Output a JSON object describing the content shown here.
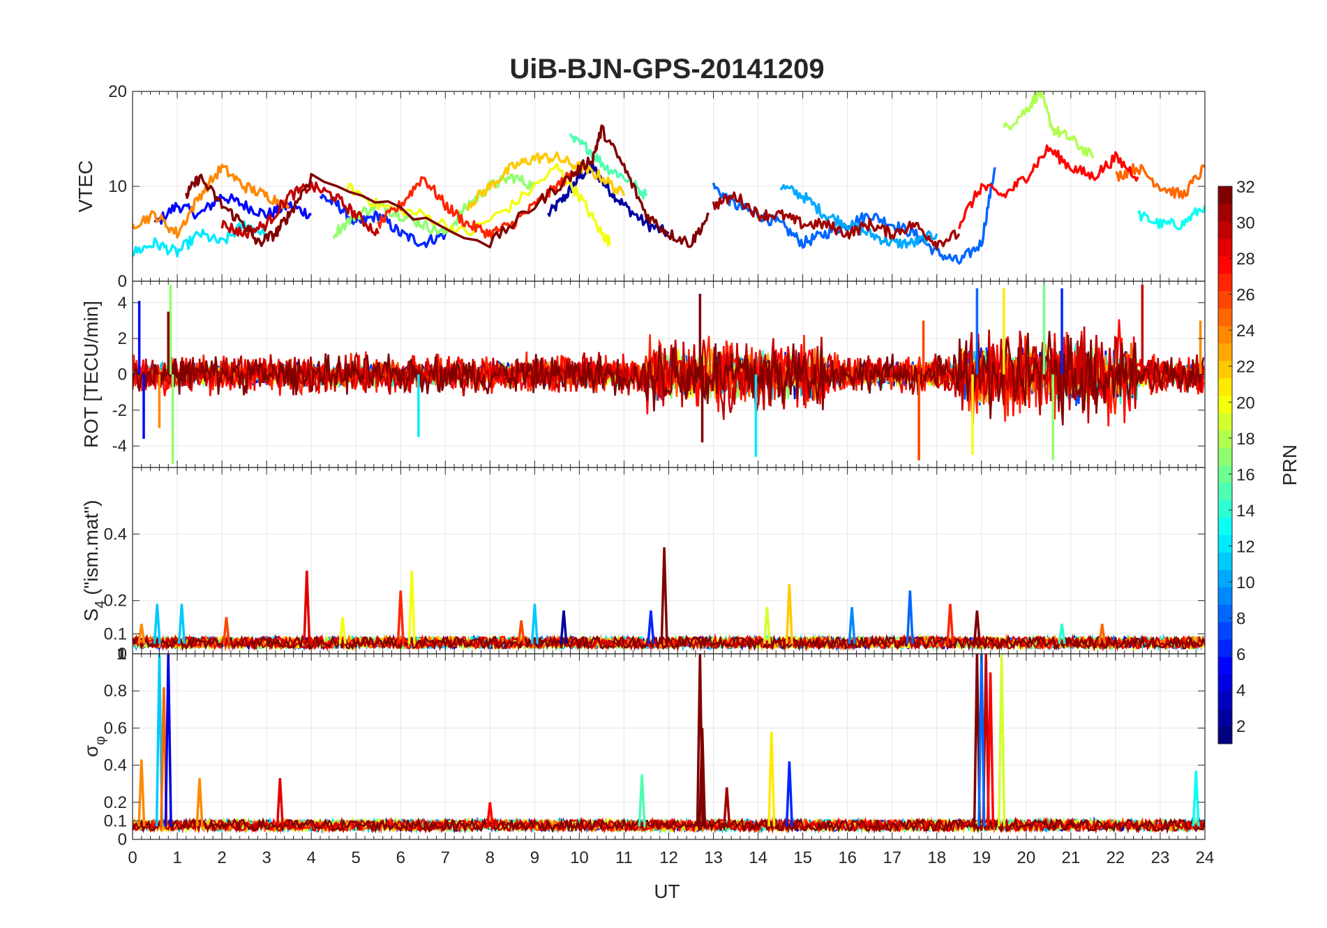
{
  "chart_data": {
    "type": "line",
    "title": "UiB-BJN-GPS-20141209",
    "xlabel": "UT",
    "xlim": [
      0,
      24
    ],
    "xticks": [
      "0",
      "1",
      "2",
      "3",
      "4",
      "5",
      "6",
      "7",
      "8",
      "9",
      "10",
      "11",
      "12",
      "13",
      "14",
      "15",
      "16",
      "17",
      "18",
      "19",
      "20",
      "21",
      "22",
      "23",
      "24"
    ],
    "colorbar": {
      "label": "PRN",
      "range": [
        1,
        32
      ],
      "colormap": "jet",
      "ticks": [
        "2",
        "4",
        "6",
        "8",
        "10",
        "12",
        "14",
        "16",
        "18",
        "20",
        "22",
        "24",
        "26",
        "28",
        "30",
        "32"
      ]
    },
    "panels": [
      {
        "id": "vtec",
        "ylabel": "VTEC",
        "ylim": [
          0,
          20
        ],
        "yticks": [
          0,
          10,
          20
        ],
        "ytick_labels": [
          "0",
          "10",
          "20"
        ],
        "series": [
          {
            "prn": 2,
            "x": [
              9.3,
              9.7,
              10.0,
              10.3,
              10.6,
              11.0,
              11.5,
              12.0
            ],
            "y": [
              7,
              9,
              11,
              12,
              10,
              8,
              6,
              5
            ]
          },
          {
            "prn": 5,
            "x": [
              0.5,
              1.0,
              1.5,
              2.0,
              2.5,
              3.0,
              3.5,
              4.0
            ],
            "y": [
              6,
              8,
              7,
              9,
              8,
              7,
              8,
              7
            ]
          },
          {
            "prn": 6,
            "x": [
              4.2,
              4.6,
              5.0,
              5.5,
              6.0,
              6.5,
              7.0
            ],
            "y": [
              9,
              8,
              6,
              7,
              5,
              4,
              5
            ]
          },
          {
            "prn": 8,
            "x": [
              13.0,
              13.5,
              14.0,
              14.5,
              15.0,
              15.5,
              16.0,
              16.5,
              17.0,
              17.5,
              18.0,
              18.5,
              19.0,
              19.3
            ],
            "y": [
              10,
              8,
              7,
              6,
              4,
              5,
              6,
              7,
              6,
              5,
              3,
              2,
              4,
              12
            ]
          },
          {
            "prn": 10,
            "x": [
              14.5,
              15.0,
              15.5,
              16.0,
              16.5,
              17.0,
              17.5,
              18.0
            ],
            "y": [
              10,
              9,
              7,
              6,
              5,
              4,
              4,
              5
            ]
          },
          {
            "prn": 12,
            "x": [
              0.0,
              0.5,
              1.0,
              1.5,
              2.0,
              2.5,
              3.0
            ],
            "y": [
              3,
              4,
              3,
              5,
              4,
              6,
              5
            ]
          },
          {
            "prn": 13,
            "x": [
              22.5,
              23.0,
              23.5,
              24.0
            ],
            "y": [
              7,
              6,
              6,
              8
            ]
          },
          {
            "prn": 15,
            "x": [
              9.8,
              10.2,
              10.6,
              11.0,
              11.5
            ],
            "y": [
              15,
              14,
              12,
              11,
              9
            ]
          },
          {
            "prn": 17,
            "x": [
              4.5,
              5.0,
              5.5,
              6.0,
              6.5,
              7.0,
              7.5,
              8.0,
              8.5,
              9.0
            ],
            "y": [
              5,
              7,
              8,
              7,
              6,
              5,
              8,
              10,
              11,
              10
            ]
          },
          {
            "prn": 18,
            "x": [
              19.5,
              20.0,
              20.3,
              20.6,
              21.0,
              21.5
            ],
            "y": [
              16,
              18,
              20,
              16,
              15,
              13
            ]
          },
          {
            "prn": 20,
            "x": [
              4.8,
              5.5,
              6.5,
              7.5,
              8.5,
              9.5,
              10.0,
              10.5,
              10.7
            ],
            "y": [
              10,
              8,
              7,
              5,
              8,
              12,
              9,
              5,
              4
            ]
          },
          {
            "prn": 22,
            "x": [
              7.5,
              8.0,
              8.5,
              9.0,
              9.5,
              10.0,
              10.5,
              11.0
            ],
            "y": [
              8,
              10,
              12,
              13,
              13,
              12,
              11,
              9
            ]
          },
          {
            "prn": 24,
            "x": [
              0.0,
              0.5,
              1.0,
              1.5,
              2.0,
              2.5,
              3.0,
              3.5
            ],
            "y": [
              6,
              7,
              5,
              9,
              12,
              10,
              9,
              8
            ]
          },
          {
            "prn": 25,
            "x": [
              22.0,
              22.5,
              23.0,
              23.5,
              24.0
            ],
            "y": [
              11,
              12,
              10,
              9,
              12
            ]
          },
          {
            "prn": 27,
            "x": [
              5.5,
              6.0,
              6.5,
              7.0,
              7.5,
              8.0,
              8.5,
              9.0,
              9.5,
              10.0
            ],
            "y": [
              6,
              8,
              11,
              8,
              6,
              5,
              6,
              8,
              10,
              12
            ]
          },
          {
            "prn": 28,
            "x": [
              18.5,
              19.0,
              19.5,
              20.0,
              20.5,
              21.0,
              21.5,
              22.0,
              22.5
            ],
            "y": [
              6,
              10,
              9,
              11,
              14,
              12,
              11,
              13,
              11
            ]
          },
          {
            "prn": 30,
            "x": [
              2.0,
              2.5,
              3.0,
              3.5,
              4.0,
              4.5,
              5.0,
              5.5
            ],
            "y": [
              6,
              5,
              6,
              9,
              10,
              9,
              7,
              5
            ]
          },
          {
            "prn": 31,
            "x": [
              13.0,
              13.5,
              14.0,
              14.5,
              15.0,
              15.5,
              16.0,
              16.5,
              17.0,
              17.5,
              18.0,
              18.5
            ],
            "y": [
              8,
              9,
              7,
              7,
              6,
              6,
              5,
              6,
              5,
              6,
              4,
              5
            ]
          },
          {
            "prn": 32,
            "x": [
              1.2,
              1.5,
              2.0,
              2.5,
              2.8,
              3.2,
              3.5,
              4.0,
              8.0,
              9.0,
              9.8,
              10.3,
              10.5,
              11.0,
              11.5,
              12.0,
              12.5,
              12.9
            ],
            "y": [
              9,
              11,
              8,
              6,
              4,
              5,
              7,
              11,
              4,
              8,
              11,
              13,
              16,
              12,
              7,
              5,
              4,
              7
            ]
          }
        ]
      },
      {
        "id": "rot",
        "ylabel": "ROT [TECU/min]",
        "ylim": [
          -5.2,
          5.2
        ],
        "yticks": [
          -4,
          -2,
          0,
          2,
          4
        ],
        "ytick_labels": [
          "-4",
          "-2",
          "0",
          "2",
          "4"
        ],
        "spikes": [
          {
            "prn": 5,
            "x": 0.15,
            "y": 4.1
          },
          {
            "prn": 5,
            "x": 0.25,
            "y": -3.6
          },
          {
            "prn": 17,
            "x": 0.85,
            "y": 5.0
          },
          {
            "prn": 17,
            "x": 0.9,
            "y": -5.0
          },
          {
            "prn": 32,
            "x": 0.8,
            "y": 3.5
          },
          {
            "prn": 24,
            "x": 0.6,
            "y": -3.0
          },
          {
            "prn": 12,
            "x": 6.4,
            "y": -3.5
          },
          {
            "prn": 32,
            "x": 12.7,
            "y": 4.5
          },
          {
            "prn": 32,
            "x": 12.75,
            "y": -3.8
          },
          {
            "prn": 12,
            "x": 13.95,
            "y": -4.6
          },
          {
            "prn": 26,
            "x": 17.6,
            "y": -4.8
          },
          {
            "prn": 26,
            "x": 17.7,
            "y": 3.0
          },
          {
            "prn": 20,
            "x": 18.8,
            "y": -4.5
          },
          {
            "prn": 8,
            "x": 18.9,
            "y": 4.8
          },
          {
            "prn": 21,
            "x": 19.5,
            "y": 4.8
          },
          {
            "prn": 16,
            "x": 20.4,
            "y": 5.0
          },
          {
            "prn": 17,
            "x": 20.6,
            "y": -4.8
          },
          {
            "prn": 30,
            "x": 22.6,
            "y": 5.0
          },
          {
            "prn": 6,
            "x": 20.8,
            "y": 4.8
          },
          {
            "prn": 24,
            "x": 23.9,
            "y": 3.0
          }
        ],
        "noise_band": [
          {
            "x0": 0,
            "x1": 11.5,
            "amplitude": 1.0
          },
          {
            "x0": 11.5,
            "x1": 15.5,
            "amplitude": 2.0
          },
          {
            "x0": 15.5,
            "x1": 18.5,
            "amplitude": 1.0
          },
          {
            "x0": 18.5,
            "x1": 22.5,
            "amplitude": 2.4
          },
          {
            "x0": 22.5,
            "x1": 24,
            "amplitude": 1.0
          }
        ]
      },
      {
        "id": "s4",
        "ylabel": "S",
        "ylabel_sub": "4",
        "ylabel_suffix": " (\"ism.mat\")",
        "ylim": [
          0.04,
          0.6
        ],
        "yticks": [
          0.1,
          0.2,
          0.4
        ],
        "ytick_labels": [
          "0.1",
          "0.2",
          "0.4"
        ],
        "baseline": 0.07,
        "spikes": [
          {
            "prn": 24,
            "x": 0.2,
            "y": 0.13
          },
          {
            "prn": 11,
            "x": 0.55,
            "y": 0.19
          },
          {
            "prn": 11,
            "x": 1.1,
            "y": 0.19
          },
          {
            "prn": 26,
            "x": 2.1,
            "y": 0.15
          },
          {
            "prn": 29,
            "x": 3.9,
            "y": 0.29
          },
          {
            "prn": 20,
            "x": 4.7,
            "y": 0.15
          },
          {
            "prn": 27,
            "x": 6.0,
            "y": 0.23
          },
          {
            "prn": 20,
            "x": 6.25,
            "y": 0.29
          },
          {
            "prn": 26,
            "x": 8.7,
            "y": 0.14
          },
          {
            "prn": 11,
            "x": 9.0,
            "y": 0.19
          },
          {
            "prn": 2,
            "x": 9.65,
            "y": 0.17
          },
          {
            "prn": 6,
            "x": 11.6,
            "y": 0.17
          },
          {
            "prn": 32,
            "x": 11.9,
            "y": 0.36
          },
          {
            "prn": 22,
            "x": 14.7,
            "y": 0.25
          },
          {
            "prn": 19,
            "x": 14.2,
            "y": 0.18
          },
          {
            "prn": 9,
            "x": 16.1,
            "y": 0.18
          },
          {
            "prn": 8,
            "x": 17.4,
            "y": 0.23
          },
          {
            "prn": 27,
            "x": 18.3,
            "y": 0.19
          },
          {
            "prn": 32,
            "x": 18.9,
            "y": 0.17
          },
          {
            "prn": 14,
            "x": 20.8,
            "y": 0.13
          },
          {
            "prn": 25,
            "x": 21.7,
            "y": 0.13
          }
        ]
      },
      {
        "id": "sigma_phi",
        "ylabel": "σ",
        "ylabel_sub": "φ",
        "ylim": [
          0,
          1
        ],
        "yticks": [
          0,
          0.1,
          0.2,
          0.4,
          0.6,
          0.8,
          1
        ],
        "ytick_labels": [
          "0",
          "0.1",
          "0.2",
          "0.4",
          "0.6",
          "0.8",
          "1"
        ],
        "top_overlap_labels": [
          "0",
          "1"
        ],
        "baseline": 0.07,
        "spikes": [
          {
            "prn": 24,
            "x": 0.2,
            "y": 0.43
          },
          {
            "prn": 11,
            "x": 0.6,
            "y": 1.0
          },
          {
            "prn": 25,
            "x": 0.7,
            "y": 0.82
          },
          {
            "prn": 4,
            "x": 0.8,
            "y": 1.0
          },
          {
            "prn": 24,
            "x": 1.5,
            "y": 0.33
          },
          {
            "prn": 29,
            "x": 3.3,
            "y": 0.33
          },
          {
            "prn": 28,
            "x": 8.0,
            "y": 0.2
          },
          {
            "prn": 15,
            "x": 11.4,
            "y": 0.35
          },
          {
            "prn": 32,
            "x": 12.7,
            "y": 1.0
          },
          {
            "prn": 32,
            "x": 12.75,
            "y": 0.6
          },
          {
            "prn": 31,
            "x": 13.3,
            "y": 0.28
          },
          {
            "prn": 21,
            "x": 14.3,
            "y": 0.58
          },
          {
            "prn": 6,
            "x": 14.7,
            "y": 0.42
          },
          {
            "prn": 32,
            "x": 18.9,
            "y": 1.0
          },
          {
            "prn": 30,
            "x": 19.1,
            "y": 1.0
          },
          {
            "prn": 28,
            "x": 19.2,
            "y": 0.9
          },
          {
            "prn": 19,
            "x": 19.45,
            "y": 1.0
          },
          {
            "prn": 8,
            "x": 19.0,
            "y": 1.0
          },
          {
            "prn": 13,
            "x": 23.8,
            "y": 0.37
          }
        ]
      }
    ]
  }
}
